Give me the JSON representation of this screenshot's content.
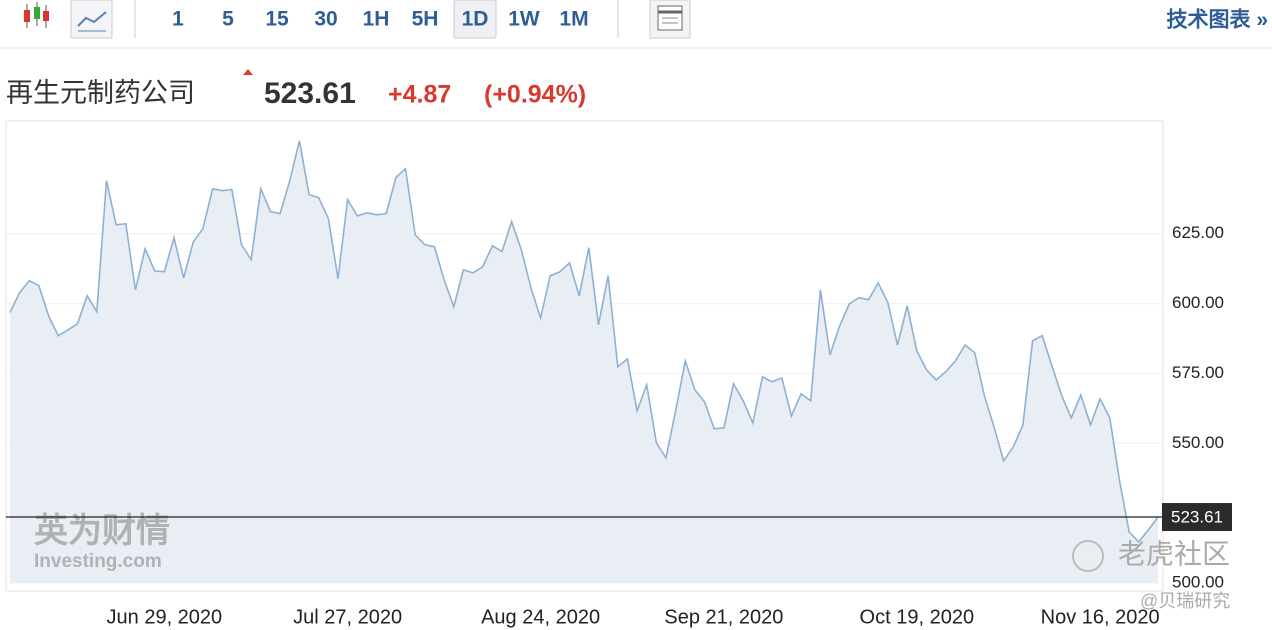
{
  "toolbar": {
    "intervals": [
      "1",
      "5",
      "15",
      "30",
      "1H",
      "5H",
      "1D",
      "1W",
      "1M"
    ],
    "active": "1D",
    "link": "技术图表 »"
  },
  "quote": {
    "name": "再生元制药公司",
    "price": "523.61",
    "change": "+4.87",
    "change_percent": "(+0.94%)"
  },
  "watermarks": [
    "英为财情",
    "Investing.com",
    "老虎社区",
    "@贝瑞研究"
  ],
  "chart_data": {
    "type": "area",
    "categories": [
      null,
      null,
      null,
      null,
      null,
      null,
      null,
      null,
      null,
      null,
      null,
      null,
      null,
      null,
      null,
      null,
      "Jun 29, 2020",
      null,
      null,
      null,
      null,
      null,
      null,
      null,
      null,
      null,
      null,
      null,
      null,
      null,
      null,
      null,
      null,
      null,
      null,
      "Jul 27, 2020",
      null,
      null,
      null,
      null,
      null,
      null,
      null,
      null,
      null,
      null,
      null,
      null,
      null,
      null,
      null,
      null,
      null,
      null,
      null,
      "Aug 24, 2020",
      null,
      null,
      null,
      null,
      null,
      null,
      null,
      null,
      null,
      null,
      null,
      null,
      null,
      null,
      null,
      null,
      null,
      null,
      "Sep 21, 2020",
      null,
      null,
      null,
      null,
      null,
      null,
      null,
      null,
      null,
      null,
      null,
      null,
      null,
      null,
      null,
      null,
      null,
      null,
      null,
      "Oct 19, 2020",
      null,
      null,
      null,
      null,
      null,
      null,
      null,
      null,
      null,
      null,
      null,
      null,
      null,
      null,
      null,
      null,
      null,
      null,
      "Nov 16, 2020",
      null,
      null,
      null,
      null,
      null,
      null
    ],
    "values": [
      596.8,
      603.9,
      608.2,
      606.4,
      595.6,
      588.5,
      590.6,
      592.8,
      602.8,
      597.1,
      644.0,
      628.2,
      628.6,
      604.9,
      619.6,
      611.7,
      611.4,
      623.6,
      609.2,
      622.1,
      626.8,
      641.1,
      640.4,
      640.8,
      621.1,
      615.7,
      641.1,
      632.9,
      632.2,
      644.0,
      658.3,
      639.0,
      637.9,
      630.4,
      608.9,
      637.2,
      631.4,
      632.5,
      631.8,
      632.2,
      645.1,
      648.3,
      624.6,
      621.1,
      620.3,
      608.5,
      598.9,
      612.1,
      611.0,
      613.2,
      620.7,
      618.6,
      629.3,
      619.3,
      605.7,
      594.9,
      610.0,
      611.4,
      614.6,
      602.8,
      620.0,
      592.4,
      610.0,
      577.4,
      580.2,
      561.6,
      570.9,
      550.1,
      544.8,
      561.6,
      579.5,
      569.1,
      564.8,
      555.2,
      555.5,
      571.3,
      565.2,
      557.3,
      573.8,
      572.0,
      573.4,
      559.8,
      567.7,
      565.2,
      604.9,
      581.7,
      592.0,
      599.9,
      602.1,
      601.4,
      607.4,
      600.3,
      585.2,
      599.2,
      583.1,
      576.3,
      572.7,
      575.6,
      579.5,
      585.2,
      582.4,
      567.0,
      555.9,
      543.7,
      548.7,
      556.6,
      586.7,
      588.5,
      577.7,
      567.3,
      559.1,
      567.3,
      556.6,
      565.9,
      559.1,
      536.9,
      518.3,
      514.7,
      519.0,
      523.61
    ],
    "color": "#8eb1d3",
    "fill": "#e9eef5",
    "last_value": {
      "value": 523.61,
      "label": "523.61"
    },
    "ylim": [
      500,
      665
    ],
    "yticks": [
      {
        "value": 500,
        "label": "500.00"
      },
      {
        "value": 550,
        "label": "550.00"
      },
      {
        "value": 575,
        "label": "575.00"
      },
      {
        "value": 600,
        "label": "600.00"
      },
      {
        "value": 625,
        "label": "625.00"
      }
    ],
    "grid": true
  }
}
